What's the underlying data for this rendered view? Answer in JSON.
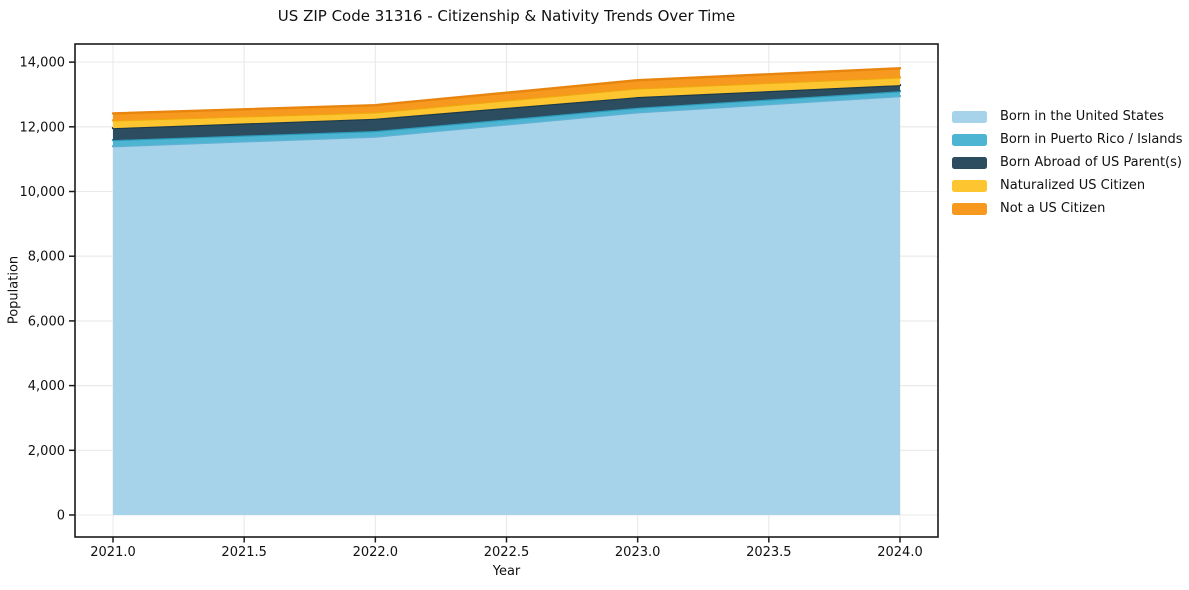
{
  "chart_data": {
    "type": "area",
    "stacked": true,
    "title": "US ZIP Code 31316 - Citizenship & Nativity Trends Over Time",
    "xlabel": "Year",
    "ylabel": "Population",
    "x": [
      2021,
      2022,
      2023,
      2024
    ],
    "series": [
      {
        "name": "Born in the United States",
        "values": [
          11400,
          11700,
          12450,
          12950
        ],
        "fill": "#a6d3e9",
        "line": "#62b1d5"
      },
      {
        "name": "Born in Puerto Rico / Islands",
        "values": [
          190,
          170,
          140,
          150
        ],
        "fill": "#4db5d2",
        "line": "#2d9cbc"
      },
      {
        "name": "Born Abroad of US Parent(s)",
        "values": [
          370,
          380,
          330,
          190
        ],
        "fill": "#2b4d5f",
        "line": "#1d3a49"
      },
      {
        "name": "Naturalized US Citizen",
        "values": [
          240,
          200,
          270,
          240
        ],
        "fill": "#fdc530",
        "line": "#efa60f"
      },
      {
        "name": "Not a US Citizen",
        "values": [
          215,
          220,
          250,
          280
        ],
        "fill": "#f6991e",
        "line": "#e8850e"
      }
    ],
    "x_ticks": [
      2021.0,
      2021.5,
      2022.0,
      2022.5,
      2023.0,
      2023.5,
      2024.0
    ],
    "x_tick_labels": [
      "2021.0",
      "2021.5",
      "2022.0",
      "2022.5",
      "2023.0",
      "2023.5",
      "2024.0"
    ],
    "y_ticks": [
      0,
      2000,
      4000,
      6000,
      8000,
      10000,
      12000,
      14000
    ],
    "y_tick_labels": [
      "0",
      "2,000",
      "4,000",
      "6,000",
      "8,000",
      "10,000",
      "12,000",
      "14,000"
    ],
    "x_range": [
      2020.8551,
      2024.1449
    ],
    "y_range": [
      -680,
      14560
    ],
    "grid": true,
    "legend_position": "right",
    "grid_color": "#e9e9e9",
    "spine_color": "#1a1a1a",
    "tick_color": "#1a1a1a",
    "text_color": "#111111",
    "background": "#ffffff"
  }
}
